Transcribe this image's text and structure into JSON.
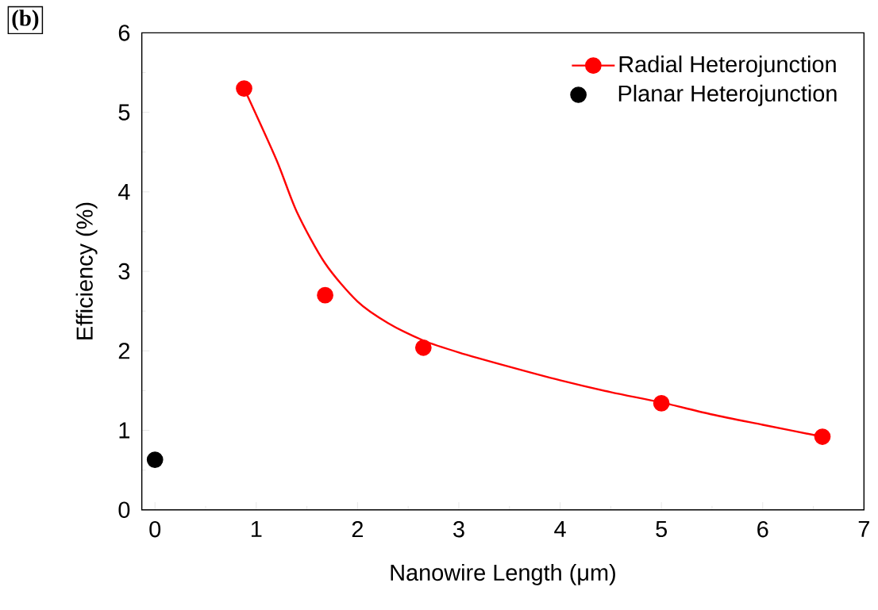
{
  "chart_data": {
    "type": "scatter",
    "xlabel": "Nanowire Length (μm)",
    "ylabel": "Efficiency (%)",
    "annotations": [
      "(b)"
    ],
    "xlim": [
      -0.13,
      7
    ],
    "ylim": [
      0,
      6
    ],
    "xticks": [
      0,
      1,
      2,
      3,
      4,
      5,
      6,
      7
    ],
    "yticks": [
      0,
      1,
      2,
      3,
      4,
      5,
      6
    ],
    "legend": "top right",
    "marker": "circle",
    "grid": false,
    "series": [
      {
        "name": "Radial Heterojunction",
        "color": "#ff0000",
        "x": [
          0.88,
          1.68,
          2.65,
          5.0,
          6.59
        ],
        "values": [
          5.3,
          2.7,
          2.04,
          1.34,
          0.92
        ]
      },
      {
        "name": "Planar Heterojunction",
        "color": "#000000",
        "x": [
          0
        ],
        "values": [
          0.63
        ]
      },
      {
        "type": "line",
        "color": "#ff0000",
        "marker": "none",
        "x": [
          0.88,
          1.2,
          1.4,
          1.68,
          2.0,
          2.3,
          2.65,
          3.0,
          3.5,
          4.0,
          4.5,
          5.0,
          5.5,
          6.0,
          6.59
        ],
        "values": [
          5.3,
          4.4,
          3.75,
          3.1,
          2.62,
          2.35,
          2.13,
          1.98,
          1.8,
          1.63,
          1.48,
          1.35,
          1.2,
          1.07,
          0.92
        ]
      }
    ]
  }
}
